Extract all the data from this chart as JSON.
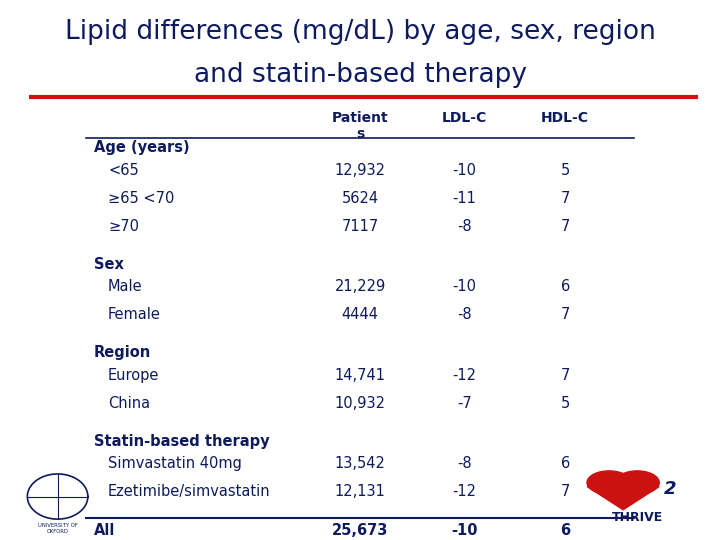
{
  "title_line1": "Lipid differences (mg/dL) by age, sex, region",
  "title_line2": "and statin-based therapy",
  "title_color": "#0d1b5e",
  "red_line_color": "#cc1111",
  "background_color": "#ffffff",
  "table_text_color": "#0d1b5e",
  "col_headers": [
    "Patient\ns",
    "LDL-C",
    "HDL-C"
  ],
  "sections": [
    {
      "header": "Age (years)",
      "rows": [
        [
          "<65",
          "12,932",
          "-10",
          "5"
        ],
        [
          "≥65 <70",
          "5624",
          "-11",
          "7"
        ],
        [
          "≥70",
          "7117",
          "-8",
          "7"
        ]
      ]
    },
    {
      "header": "Sex",
      "rows": [
        [
          "Male",
          "21,229",
          "-10",
          "6"
        ],
        [
          "Female",
          "4444",
          "-8",
          "7"
        ]
      ]
    },
    {
      "header": "Region",
      "rows": [
        [
          "Europe",
          "14,741",
          "-12",
          "7"
        ],
        [
          "China",
          "10,932",
          "-7",
          "5"
        ]
      ]
    },
    {
      "header": "Statin-based therapy",
      "rows": [
        [
          "Simvastatin 40mg",
          "13,542",
          "-8",
          "6"
        ],
        [
          "Ezetimibe/simvastatin",
          "12,131",
          "-12",
          "7"
        ]
      ]
    }
  ],
  "all_row": [
    "All",
    "25,673",
    "-10",
    "6"
  ],
  "title_fontsize": 19,
  "col_header_fontsize": 10,
  "row_fontsize": 10.5,
  "section_header_fontsize": 10.5
}
